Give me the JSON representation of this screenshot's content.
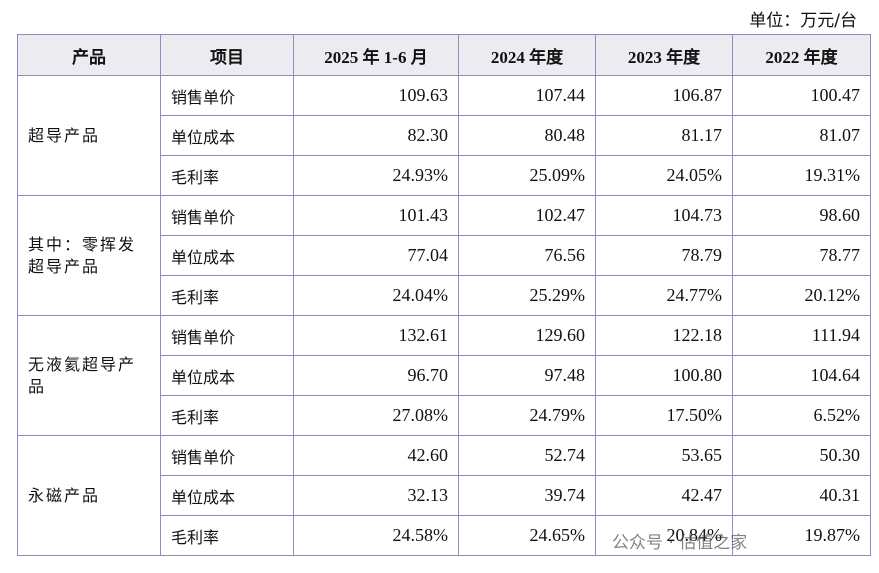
{
  "unit": "单位：万元/台",
  "headers": [
    "产品",
    "项目",
    "2025 年 1-6 月",
    "2024 年度",
    "2023 年度",
    "2022 年度"
  ],
  "groups": [
    {
      "product": "超导产品",
      "rows": [
        [
          "销售单价",
          "109.63",
          "107.44",
          "106.87",
          "100.47"
        ],
        [
          "单位成本",
          "82.30",
          "80.48",
          "81.17",
          "81.07"
        ],
        [
          "毛利率",
          "24.93%",
          "25.09%",
          "24.05%",
          "19.31%"
        ]
      ]
    },
    {
      "product": "其中：零挥发超导产品",
      "rows": [
        [
          "销售单价",
          "101.43",
          "102.47",
          "104.73",
          "98.60"
        ],
        [
          "单位成本",
          "77.04",
          "76.56",
          "78.79",
          "78.77"
        ],
        [
          "毛利率",
          "24.04%",
          "25.29%",
          "24.77%",
          "20.12%"
        ]
      ]
    },
    {
      "product": "无液氦超导产品",
      "rows": [
        [
          "销售单价",
          "132.61",
          "129.60",
          "122.18",
          "111.94"
        ],
        [
          "单位成本",
          "96.70",
          "97.48",
          "100.80",
          "104.64"
        ],
        [
          "毛利率",
          "27.08%",
          "24.79%",
          "17.50%",
          "6.52%"
        ]
      ]
    },
    {
      "product": "永磁产品",
      "rows": [
        [
          "销售单价",
          "42.60",
          "52.74",
          "53.65",
          "50.30"
        ],
        [
          "单位成本",
          "32.13",
          "39.74",
          "42.47",
          "40.31"
        ],
        [
          "毛利率",
          "24.58%",
          "24.65%",
          "20.84%",
          "19.87%"
        ]
      ]
    }
  ],
  "watermark": "公众号 · 估值之家"
}
